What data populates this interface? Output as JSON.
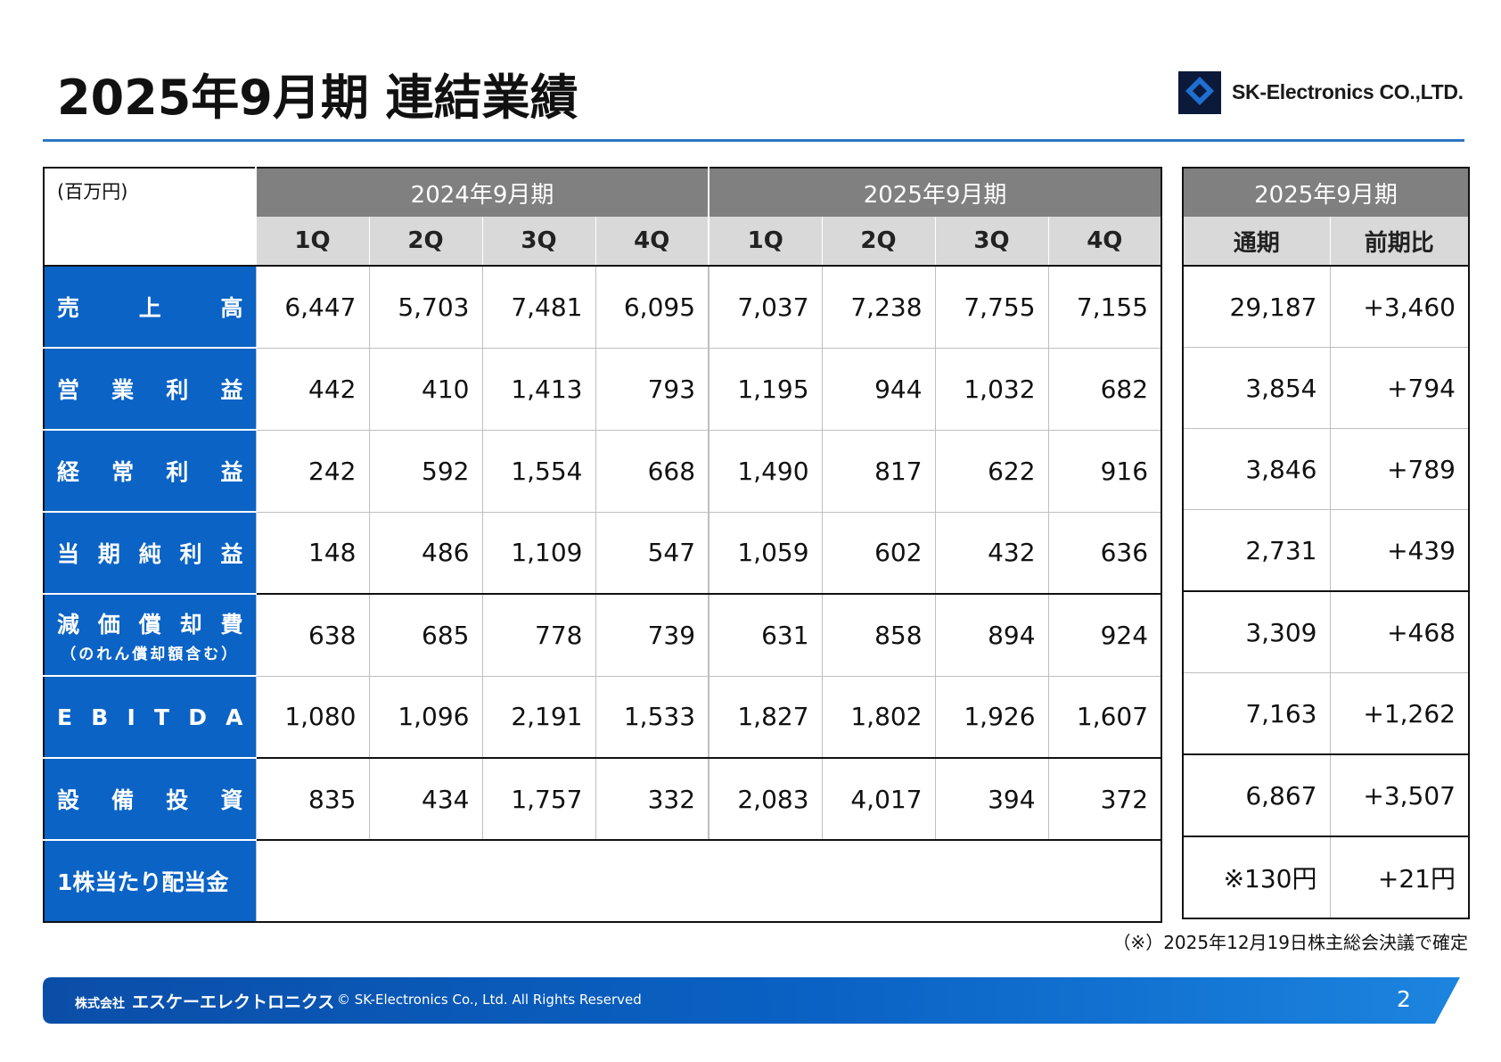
{
  "title": "2025年9月期 連結業績",
  "logo": {
    "text": "SK-Electronics CO.,LTD.",
    "mark_caption": "SK-Electronics"
  },
  "table": {
    "unit": "(百万円)",
    "groups": [
      "2024年9月期",
      "2025年9月期"
    ],
    "quarters": [
      "1Q",
      "2Q",
      "3Q",
      "4Q",
      "1Q",
      "2Q",
      "3Q",
      "4Q"
    ],
    "side_group": "2025年9月期",
    "side_columns": [
      "通期",
      "前期比"
    ],
    "rows": [
      {
        "label": [
          "売",
          "上",
          "高"
        ],
        "values": [
          "6,447",
          "5,703",
          "7,481",
          "6,095",
          "7,037",
          "7,238",
          "7,755",
          "7,155"
        ],
        "full_year": "29,187",
        "yoy": "+3,460"
      },
      {
        "label": [
          "営",
          "業",
          "利",
          "益"
        ],
        "values": [
          "442",
          "410",
          "1,413",
          "793",
          "1,195",
          "944",
          "1,032",
          "682"
        ],
        "full_year": "3,854",
        "yoy": "+794"
      },
      {
        "label": [
          "経",
          "常",
          "利",
          "益"
        ],
        "values": [
          "242",
          "592",
          "1,554",
          "668",
          "1,490",
          "817",
          "622",
          "916"
        ],
        "full_year": "3,846",
        "yoy": "+789"
      },
      {
        "label": [
          "当",
          "期",
          "純",
          "利",
          "益"
        ],
        "values": [
          "148",
          "486",
          "1,109",
          "547",
          "1,059",
          "602",
          "432",
          "636"
        ],
        "full_year": "2,731",
        "yoy": "+439"
      },
      {
        "label": [
          "減",
          "価",
          "償",
          "却",
          "費"
        ],
        "sublabel": "（のれん償却額含む）",
        "values": [
          "638",
          "685",
          "778",
          "739",
          "631",
          "858",
          "894",
          "924"
        ],
        "full_year": "3,309",
        "yoy": "+468"
      },
      {
        "label": [
          "E",
          "B",
          "I",
          "T",
          "D",
          "A"
        ],
        "values": [
          "1,080",
          "1,096",
          "2,191",
          "1,533",
          "1,827",
          "1,802",
          "1,926",
          "1,607"
        ],
        "full_year": "7,163",
        "yoy": "+1,262"
      },
      {
        "label": [
          "設",
          "備",
          "投",
          "資"
        ],
        "values": [
          "835",
          "434",
          "1,757",
          "332",
          "2,083",
          "4,017",
          "394",
          "372"
        ],
        "full_year": "6,867",
        "yoy": "+3,507"
      },
      {
        "label_full": "1株当たり配当金",
        "values": [],
        "full_year": "※130円",
        "yoy": "+21円"
      }
    ]
  },
  "footnote": "（※）2025年12月19日株主総会決議で確定",
  "footer": {
    "company_prefix": "株式会社",
    "company_name": "エスケーエレクトロニクス",
    "copyright": "© SK-Electronics Co., Ltd. All Rights Reserved",
    "page_number": "2"
  },
  "colors": {
    "accent_blue": "#0b63c5",
    "header_gray": "#808080",
    "subheader_gray": "#d9d9d9",
    "rule_blue": "#2e75c2"
  }
}
